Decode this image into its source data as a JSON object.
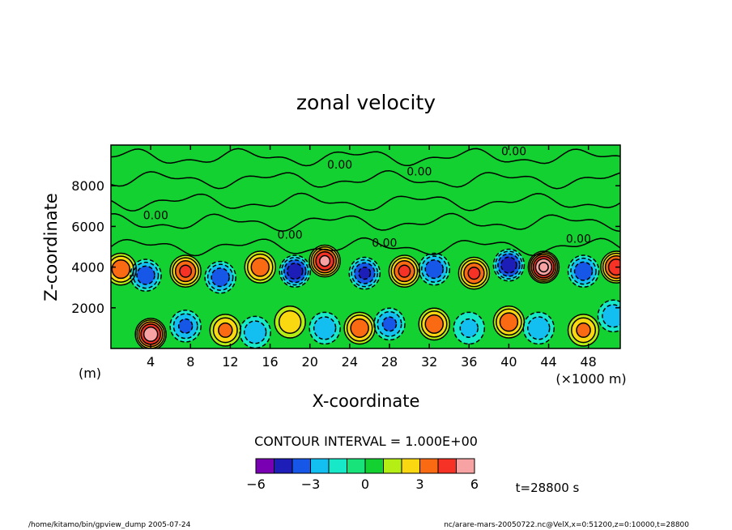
{
  "chart_data": {
    "type": "heatmap",
    "title": "zonal velocity",
    "xlabel": "X-coordinate",
    "ylabel": "Z-coordinate",
    "x_unit_left": "(m)",
    "x_unit_right": "(×1000 m)",
    "x_ticks": [
      4,
      8,
      12,
      16,
      20,
      24,
      28,
      32,
      36,
      40,
      44,
      48
    ],
    "y_ticks": [
      2000,
      4000,
      6000,
      8000
    ],
    "xlim": [
      0,
      51.2
    ],
    "ylim": [
      0,
      10000
    ],
    "contour_labels": [
      "0.00",
      "0.00",
      "0.00",
      "0.00",
      "0.00",
      "0.00",
      "0.00"
    ],
    "contour_interval": "CONTOUR INTERVAL = 1.000E+00",
    "colorbar": {
      "ticks": [
        "−6",
        "−3",
        "0",
        "3",
        "6"
      ],
      "colors": [
        "#7a00b4",
        "#1d1db8",
        "#1657e8",
        "#13bff0",
        "#17e8c8",
        "#18e27a",
        "#13d130",
        "#b4ee14",
        "#f9d711",
        "#fa6a12",
        "#f53225",
        "#f8a3a3"
      ]
    },
    "time_label": "t=28800 s",
    "anomalies": [
      {
        "x": 4.0,
        "z": 700,
        "v": 5.0
      },
      {
        "x": 7.5,
        "z": 1100,
        "v": -2.5
      },
      {
        "x": 11.5,
        "z": 900,
        "v": 2.5
      },
      {
        "x": 14.5,
        "z": 800,
        "v": -2.0
      },
      {
        "x": 18.0,
        "z": 1300,
        "v": 2.0
      },
      {
        "x": 21.5,
        "z": 1000,
        "v": -2.0
      },
      {
        "x": 25.0,
        "z": 1000,
        "v": 3.0
      },
      {
        "x": 28.0,
        "z": 1200,
        "v": -2.5
      },
      {
        "x": 32.5,
        "z": 1200,
        "v": 3.0
      },
      {
        "x": 36.0,
        "z": 1000,
        "v": -1.5
      },
      {
        "x": 40.0,
        "z": 1300,
        "v": 3.0
      },
      {
        "x": 43.0,
        "z": 1000,
        "v": -2.0
      },
      {
        "x": 47.5,
        "z": 900,
        "v": 2.5
      },
      {
        "x": 50.5,
        "z": 1600,
        "v": -2.0
      },
      {
        "x": 1.0,
        "z": 3900,
        "v": 3.0
      },
      {
        "x": 3.5,
        "z": 3600,
        "v": -3.0
      },
      {
        "x": 7.5,
        "z": 3800,
        "v": 3.5
      },
      {
        "x": 11.0,
        "z": 3500,
        "v": -3.0
      },
      {
        "x": 15.0,
        "z": 4000,
        "v": 3.0
      },
      {
        "x": 18.5,
        "z": 3800,
        "v": -4.0
      },
      {
        "x": 21.5,
        "z": 4300,
        "v": 4.5
      },
      {
        "x": 25.5,
        "z": 3700,
        "v": -3.5
      },
      {
        "x": 29.5,
        "z": 3800,
        "v": 3.5
      },
      {
        "x": 32.5,
        "z": 3900,
        "v": -3.0
      },
      {
        "x": 36.5,
        "z": 3700,
        "v": 3.5
      },
      {
        "x": 40.0,
        "z": 4100,
        "v": -4.0
      },
      {
        "x": 43.5,
        "z": 4000,
        "v": 5.5
      },
      {
        "x": 47.5,
        "z": 3800,
        "v": -3.0
      },
      {
        "x": 50.8,
        "z": 4000,
        "v": 4.0
      }
    ]
  },
  "footer": {
    "left": "/home/kitamo/bin/gpview_dump  2005-07-24",
    "right": "nc/arare-mars-20050722.nc@VelX,x=0:51200,z=0:10000,t=28800"
  }
}
